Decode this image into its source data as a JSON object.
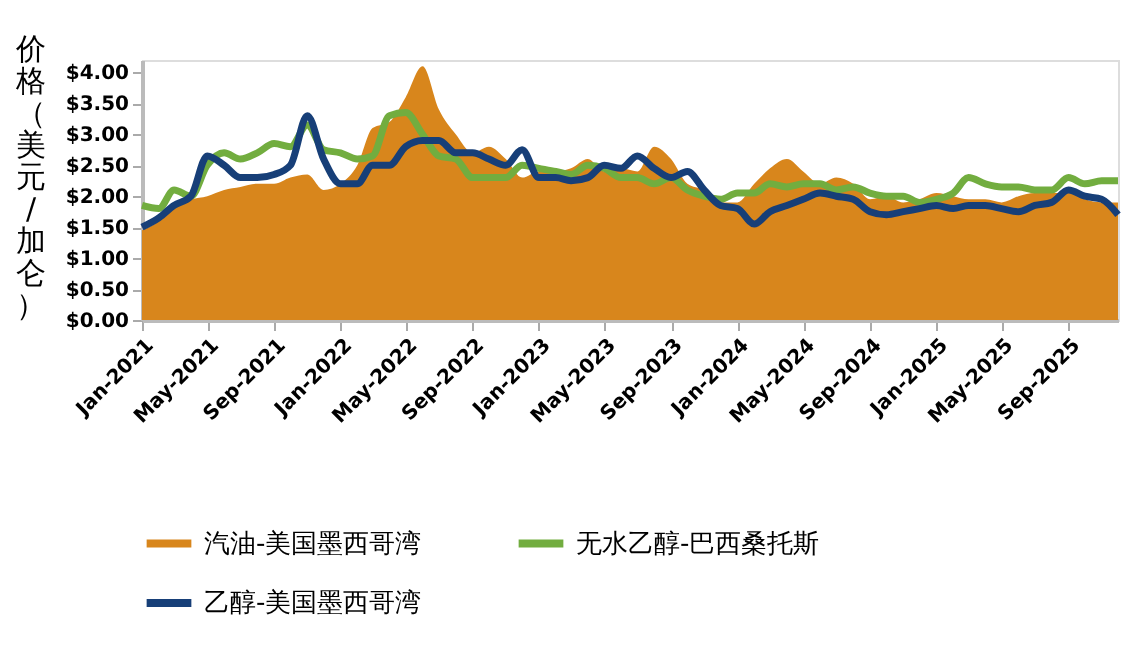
{
  "chart_data": {
    "type": "area",
    "ylabel": "价格（美元/加仑）",
    "x": [
      "2021-01",
      "2021-02",
      "2021-03",
      "2021-04",
      "2021-05",
      "2021-06",
      "2021-07",
      "2021-08",
      "2021-09",
      "2021-10",
      "2021-11",
      "2021-12",
      "2022-01",
      "2022-02",
      "2022-03",
      "2022-04",
      "2022-05",
      "2022-06",
      "2022-07",
      "2022-08",
      "2022-09",
      "2022-10",
      "2022-11",
      "2022-12",
      "2023-01",
      "2023-02",
      "2023-03",
      "2023-04",
      "2023-05",
      "2023-06",
      "2023-07",
      "2023-08",
      "2023-09",
      "2023-10",
      "2023-11",
      "2023-12",
      "2024-01",
      "2024-02",
      "2024-03",
      "2024-04",
      "2024-05",
      "2024-06",
      "2024-07",
      "2024-08",
      "2024-09",
      "2024-10",
      "2024-11",
      "2024-12",
      "2025-01",
      "2025-02",
      "2025-03",
      "2025-04",
      "2025-05",
      "2025-06",
      "2025-07",
      "2025-08",
      "2025-09",
      "2025-10",
      "2025-11",
      "2025-12"
    ],
    "series": [
      {
        "name": "汽油-美国墨西哥湾",
        "type": "area",
        "color": "#d8861c",
        "values": [
          1.45,
          1.6,
          1.85,
          1.95,
          2.0,
          2.1,
          2.15,
          2.2,
          2.2,
          2.3,
          2.35,
          2.1,
          2.2,
          2.5,
          3.1,
          3.2,
          3.6,
          4.1,
          3.4,
          3.0,
          2.7,
          2.8,
          2.6,
          2.3,
          2.4,
          2.4,
          2.45,
          2.6,
          2.4,
          2.45,
          2.4,
          2.8,
          2.6,
          2.2,
          2.1,
          1.9,
          1.9,
          2.2,
          2.45,
          2.6,
          2.4,
          2.2,
          2.3,
          2.2,
          1.95,
          2.0,
          1.9,
          1.95,
          2.05,
          2.0,
          1.95,
          1.95,
          1.9,
          2.0,
          2.05,
          2.05,
          2.05,
          1.95,
          1.9,
          1.9
        ]
      },
      {
        "name": "无水乙醇-巴西桑托斯",
        "type": "line",
        "color": "#72ad3f",
        "values": [
          1.85,
          1.8,
          2.1,
          2.0,
          2.5,
          2.7,
          2.6,
          2.7,
          2.85,
          2.8,
          3.15,
          2.75,
          2.7,
          2.6,
          2.65,
          3.3,
          3.35,
          3.0,
          2.65,
          2.6,
          2.3,
          2.3,
          2.3,
          2.5,
          2.45,
          2.4,
          2.35,
          2.5,
          2.45,
          2.3,
          2.3,
          2.2,
          2.3,
          2.1,
          2.0,
          1.95,
          2.05,
          2.05,
          2.2,
          2.15,
          2.2,
          2.2,
          2.1,
          2.15,
          2.05,
          2.0,
          2.0,
          1.9,
          1.95,
          2.05,
          2.3,
          2.2,
          2.15,
          2.15,
          2.1,
          2.1,
          2.3,
          2.2,
          2.25,
          2.25
        ]
      },
      {
        "name": "乙醇-美国墨西哥湾",
        "type": "line",
        "color": "#173f78",
        "values": [
          1.5,
          1.65,
          1.85,
          2.0,
          2.65,
          2.5,
          2.3,
          2.3,
          2.35,
          2.5,
          3.3,
          2.6,
          2.2,
          2.2,
          2.5,
          2.5,
          2.8,
          2.9,
          2.9,
          2.7,
          2.7,
          2.6,
          2.5,
          2.75,
          2.3,
          2.3,
          2.25,
          2.3,
          2.5,
          2.45,
          2.65,
          2.45,
          2.3,
          2.4,
          2.1,
          1.85,
          1.8,
          1.55,
          1.75,
          1.85,
          1.95,
          2.05,
          2.0,
          1.95,
          1.75,
          1.7,
          1.75,
          1.8,
          1.85,
          1.8,
          1.85,
          1.85,
          1.8,
          1.75,
          1.85,
          1.9,
          2.1,
          2.0,
          1.95,
          1.7
        ]
      }
    ],
    "xlim": [
      "2021-01",
      "2025-12"
    ],
    "xticks": [
      {
        "value": "2021-01",
        "label": "Jan-2021"
      },
      {
        "value": "2021-05",
        "label": "May-2021"
      },
      {
        "value": "2021-09",
        "label": "Sep-2021"
      },
      {
        "value": "2022-01",
        "label": "Jan-2022"
      },
      {
        "value": "2022-05",
        "label": "May-2022"
      },
      {
        "value": "2022-09",
        "label": "Sep-2022"
      },
      {
        "value": "2023-01",
        "label": "Jan-2023"
      },
      {
        "value": "2023-05",
        "label": "May-2023"
      },
      {
        "value": "2023-09",
        "label": "Sep-2023"
      },
      {
        "value": "2024-01",
        "label": "Jan-2024"
      },
      {
        "value": "2024-05",
        "label": "May-2024"
      },
      {
        "value": "2024-09",
        "label": "Sep-2024"
      },
      {
        "value": "2025-01",
        "label": "Jan-2025"
      },
      {
        "value": "2025-05",
        "label": "May-2025"
      },
      {
        "value": "2025-09",
        "label": "Sep-2025"
      }
    ],
    "ylim": [
      0,
      4.2
    ],
    "yticks": [
      {
        "value": 0,
        "label": "$0.00"
      },
      {
        "value": 0.5,
        "label": "$0.50"
      },
      {
        "value": 1,
        "label": "$1.00"
      },
      {
        "value": 1.5,
        "label": "$1.50"
      },
      {
        "value": 2,
        "label": "$2.00"
      },
      {
        "value": 2.5,
        "label": "$2.50"
      },
      {
        "value": 3,
        "label": "$3.00"
      },
      {
        "value": 3.5,
        "label": "$3.50"
      },
      {
        "value": 4,
        "label": "$4.00"
      }
    ],
    "grid": false,
    "legend": "bottom"
  }
}
